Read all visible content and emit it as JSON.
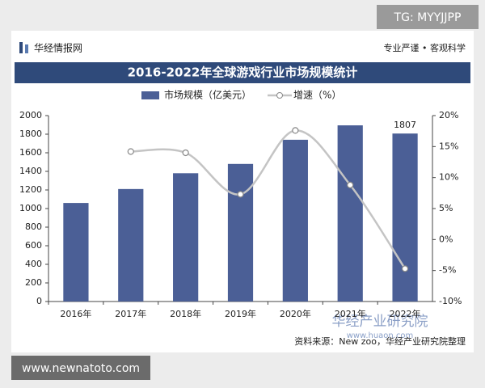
{
  "watermark_top": "TG: MYYJJPP",
  "watermark_bottom": "www.newnatoto.com",
  "header": {
    "brand": "华经情报网",
    "slogan": "专业严谨 • 客观科学"
  },
  "overlay": {
    "name": "华经产业研究院",
    "url": "www.huaon.com"
  },
  "source": "资料来源：New zoo，华经产业研究院整理",
  "chart_data": {
    "type": "bar",
    "title": "2016-2022年全球游戏行业市场规模统计",
    "categories": [
      "2016年",
      "2017年",
      "2018年",
      "2019年",
      "2020年",
      "2021年",
      "2022年"
    ],
    "series": [
      {
        "name": "市场规模（亿美元）",
        "type": "bar",
        "color": "#4b5f96",
        "values": [
          1060,
          1210,
          1380,
          1480,
          1740,
          1895,
          1807
        ]
      },
      {
        "name": "增速（%）",
        "type": "line",
        "axis": "y2",
        "color": "#c4c4c4",
        "values": [
          null,
          14.2,
          14.0,
          7.3,
          17.6,
          8.8,
          -4.7
        ]
      }
    ],
    "ylim": [
      0,
      2000
    ],
    "yticks": [
      0,
      200,
      400,
      600,
      800,
      1000,
      1200,
      1400,
      1600,
      1800,
      2000
    ],
    "y2lim": [
      -10,
      20
    ],
    "y2ticks": [
      {
        "value": -10,
        "label": "-10%"
      },
      {
        "value": -5,
        "label": "-5%"
      },
      {
        "value": 0,
        "label": "0%"
      },
      {
        "value": 5,
        "label": "5%"
      },
      {
        "value": 10,
        "label": "10%"
      },
      {
        "value": 15,
        "label": "15%"
      },
      {
        "value": 20,
        "label": "20%"
      }
    ],
    "legend": "top"
  }
}
